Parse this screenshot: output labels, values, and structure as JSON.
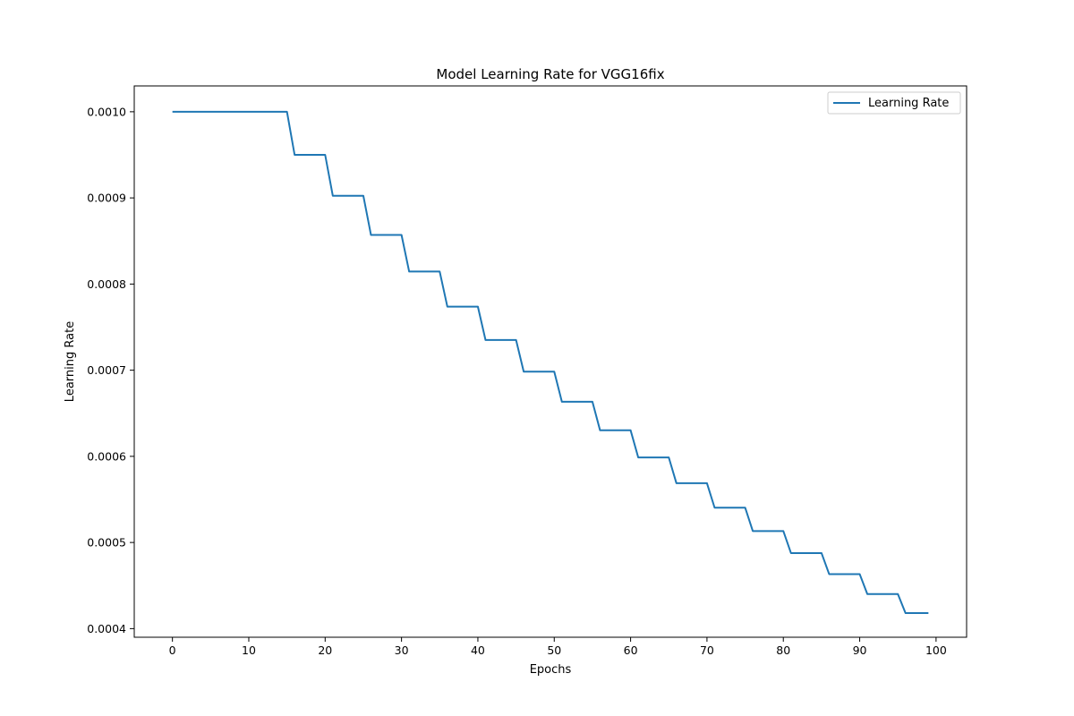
{
  "chart_data": {
    "type": "line",
    "title": "Model Learning Rate for VGG16fix",
    "xlabel": "Epochs",
    "ylabel": "Learning Rate",
    "xlim": [
      -5,
      104
    ],
    "ylim": [
      0.00039,
      0.00103
    ],
    "xticks": [
      0,
      10,
      20,
      30,
      40,
      50,
      60,
      70,
      80,
      90,
      100
    ],
    "xtick_labels": [
      "0",
      "10",
      "20",
      "30",
      "40",
      "50",
      "60",
      "70",
      "80",
      "90",
      "100"
    ],
    "yticks": [
      0.0004,
      0.0005,
      0.0006,
      0.0007,
      0.0008,
      0.0009,
      0.001
    ],
    "ytick_labels": [
      "0.0004",
      "0.0005",
      "0.0006",
      "0.0007",
      "0.0008",
      "0.0009",
      "0.0010"
    ],
    "grid": false,
    "legend_position": "top-right",
    "series": [
      {
        "name": "Learning Rate",
        "color": "#1f77b4",
        "x": [
          0,
          15,
          16,
          20,
          21,
          25,
          26,
          30,
          31,
          35,
          36,
          40,
          41,
          45,
          46,
          50,
          51,
          55,
          56,
          60,
          61,
          65,
          66,
          70,
          71,
          75,
          76,
          80,
          81,
          85,
          86,
          90,
          91,
          95,
          96,
          99
        ],
        "y": [
          0.001,
          0.001,
          0.00095,
          0.00095,
          0.0009025,
          0.0009025,
          0.000857,
          0.000857,
          0.0008145,
          0.0008145,
          0.0007738,
          0.0007738,
          0.0007351,
          0.0007351,
          0.0006983,
          0.0006983,
          0.0006634,
          0.0006634,
          0.0006302,
          0.0006302,
          0.0005987,
          0.0005987,
          0.0005688,
          0.0005688,
          0.0005404,
          0.0005404,
          0.0005133,
          0.0005133,
          0.0004877,
          0.0004877,
          0.0004633,
          0.0004633,
          0.0004401,
          0.0004401,
          0.0004181,
          0.0004181
        ]
      }
    ]
  }
}
